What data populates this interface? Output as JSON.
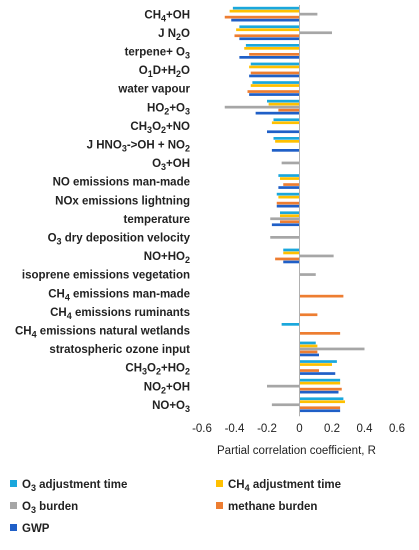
{
  "chart_data": {
    "type": "bar",
    "orientation": "horizontal",
    "title": "",
    "xlabel": "Partial correlation coefficient, R",
    "ylabel": "",
    "xlim": [
      -0.6,
      0.6
    ],
    "xticks": [
      -0.6,
      -0.4,
      -0.2,
      0,
      0.2,
      0.4,
      0.6
    ],
    "xtick_labels": [
      "-0.6",
      "-0.4",
      "-0.2",
      "0",
      "0.2",
      "0.4",
      "0.6"
    ],
    "grid": false,
    "legend_position": "bottom",
    "categories": [
      {
        "base": "CH",
        "sub": "4",
        "rest": "+OH"
      },
      {
        "base": "J N",
        "sub": "2",
        "rest": "O"
      },
      {
        "base": "terpene+ O",
        "sub": "3",
        "rest": ""
      },
      {
        "base": "O",
        "sub": "1",
        "rest": "D+H",
        "sub2": "2",
        "rest2": "O"
      },
      {
        "base": "water vapour",
        "sub": "",
        "rest": ""
      },
      {
        "base": "HO",
        "sub": "2",
        "rest": "+O",
        "sub2": "3",
        "rest2": ""
      },
      {
        "base": "CH",
        "sub": "3",
        "rest": "O",
        "sub2": "2",
        "rest2": "+NO"
      },
      {
        "base": "J HNO",
        "sub": "3",
        "rest": "->OH + NO",
        "sub2": "2",
        "rest2": ""
      },
      {
        "base": "O",
        "sub": "3",
        "rest": "+OH"
      },
      {
        "base": "NO emissions man-made",
        "sub": "",
        "rest": ""
      },
      {
        "base": "NOx emissions lightning",
        "sub": "",
        "rest": ""
      },
      {
        "base": "temperature",
        "sub": "",
        "rest": ""
      },
      {
        "base": "O",
        "sub": "3",
        "rest": " dry deposition velocity"
      },
      {
        "base": "NO+HO",
        "sub": "2",
        "rest": ""
      },
      {
        "base": "isoprene emissions vegetation",
        "sub": "",
        "rest": ""
      },
      {
        "base": "CH",
        "sub": "4",
        "rest": " emissions man-made"
      },
      {
        "base": "CH",
        "sub": "4",
        "rest": " emissions ruminants"
      },
      {
        "base": "CH",
        "sub": "4",
        "rest": " emissions natural wetlands"
      },
      {
        "base": "stratospheric ozone input",
        "sub": "",
        "rest": ""
      },
      {
        "base": "CH",
        "sub": "3",
        "rest": "O",
        "sub2": "2",
        "rest2": "+HO",
        "sub3": "2"
      },
      {
        "base": "NO",
        "sub": "2",
        "rest": "+OH"
      },
      {
        "base": "NO+O",
        "sub": "3",
        "rest": ""
      }
    ],
    "series": [
      {
        "name": "O3 adjustment time",
        "color": "#1aa7dc",
        "values": [
          -0.41,
          -0.37,
          -0.33,
          -0.3,
          -0.29,
          -0.2,
          -0.16,
          -0.16,
          0.0,
          -0.13,
          -0.14,
          -0.12,
          0.0,
          -0.1,
          0.0,
          0.0,
          0.0,
          -0.11,
          0.1,
          0.23,
          0.25,
          0.27
        ]
      },
      {
        "name": "CH4 adjustment time",
        "color": "#ffc000",
        "values": [
          -0.43,
          -0.39,
          -0.34,
          -0.31,
          -0.3,
          -0.19,
          -0.17,
          -0.15,
          0.0,
          -0.12,
          -0.13,
          -0.12,
          0.0,
          -0.1,
          0.0,
          0.0,
          0.0,
          0.0,
          0.11,
          0.2,
          0.25,
          0.28
        ]
      },
      {
        "name": "O3 burden",
        "color": "#a6a6a6",
        "values": [
          0.11,
          0.2,
          0.0,
          0.0,
          0.0,
          -0.46,
          0.0,
          0.0,
          -0.11,
          0.0,
          0.0,
          -0.18,
          -0.18,
          0.21,
          0.1,
          0.0,
          0.0,
          0.0,
          0.4,
          0.0,
          -0.2,
          -0.17
        ]
      },
      {
        "name": "methane burden",
        "color": "#ed7d31",
        "values": [
          -0.46,
          -0.4,
          -0.31,
          -0.3,
          -0.32,
          -0.13,
          0.0,
          0.0,
          0.0,
          -0.1,
          -0.14,
          -0.12,
          0.0,
          -0.15,
          0.0,
          0.27,
          0.11,
          0.25,
          0.11,
          0.12,
          0.26,
          0.25
        ]
      },
      {
        "name": "GWP",
        "color": "#1f5fc7",
        "values": [
          -0.42,
          -0.37,
          -0.37,
          -0.31,
          -0.31,
          -0.27,
          -0.2,
          -0.17,
          0.0,
          -0.13,
          -0.14,
          -0.17,
          0.0,
          -0.1,
          0.0,
          0.0,
          0.0,
          0.0,
          0.12,
          0.22,
          0.24,
          0.25
        ]
      }
    ],
    "legend": [
      {
        "base": "O",
        "sub": "3",
        "rest": " adjustment time",
        "color": "#1aa7dc"
      },
      {
        "base": "CH",
        "sub": "4",
        "rest": " adjustment time",
        "color": "#ffc000"
      },
      {
        "base": "O",
        "sub": "3",
        "rest": " burden",
        "color": "#a6a6a6"
      },
      {
        "base": "methane burden",
        "sub": "",
        "rest": "",
        "color": "#ed7d31"
      },
      {
        "base": "GWP",
        "sub": "",
        "rest": "",
        "color": "#1f5fc7"
      }
    ]
  }
}
